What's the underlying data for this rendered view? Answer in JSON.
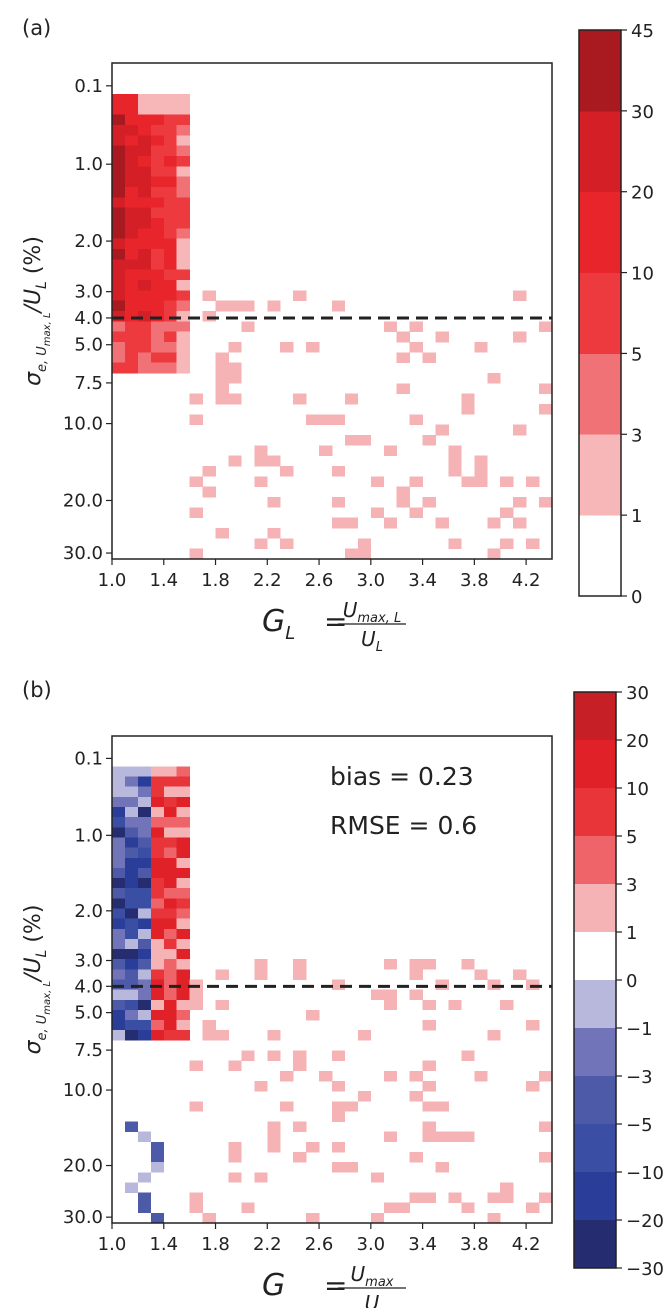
{
  "chart_data": [
    {
      "panel_label": "(a)",
      "type": "heatmap",
      "xlabel": {
        "main": "G",
        "sub": "L",
        "num": "U",
        "num_sub": "max, L",
        "den": "U",
        "den_sub": "L"
      },
      "ylabel": "σ_{e,U_max,L}/U_L (%)",
      "ylabel_parts": {
        "sigma": "σ",
        "sub1": "e, U",
        "subsub": "max, L",
        "rest": "/U",
        "rest_sub": "L",
        "unit": " (%)"
      },
      "xlim": [
        1.0,
        4.4
      ],
      "ylim_pct_log": [
        0.07,
        31
      ],
      "x_ticks": [
        "1.0",
        "1.4",
        "1.8",
        "2.2",
        "2.6",
        "3.0",
        "3.4",
        "3.8",
        "4.2"
      ],
      "y_ticks": [
        "0.1",
        "1.0",
        "2.0",
        "3.0",
        "4.0",
        "5.0",
        "7.5",
        "10.0",
        "20.0",
        "30.0"
      ],
      "threshold_pct": 4.0,
      "colorbar": {
        "ticks": [
          "0",
          "1",
          "3",
          "5",
          "10",
          "20",
          "30",
          "45"
        ],
        "colors": [
          "#ffffff",
          "#f7b6b8",
          "#f07276",
          "#ec3a3e",
          "#e8252b",
          "#d41f26",
          "#a81a20"
        ]
      },
      "cells": [
        [
          0.1,
          1.02,
          1
        ],
        [
          0.1,
          1.06,
          2
        ],
        [
          0.1,
          1.1,
          2
        ],
        [
          0.1,
          1.14,
          2
        ],
        [
          0.1,
          1.18,
          2
        ],
        [
          0.1,
          1.22,
          2
        ],
        [
          0.1,
          1.26,
          2
        ],
        [
          0.1,
          1.3,
          2
        ],
        [
          0.1,
          1.34,
          1
        ],
        [
          0.1,
          1.38,
          1
        ],
        [
          0.1,
          1.42,
          1
        ],
        [
          0.1,
          1.46,
          1
        ],
        [
          0.1,
          1.5,
          1
        ],
        [
          0.1,
          1.54,
          1
        ],
        [
          0.1,
          1.58,
          1
        ],
        [
          0.1,
          1.62,
          1
        ],
        [
          0.1,
          1.66,
          1
        ],
        [
          0.1,
          1.7,
          1
        ],
        [
          0.1,
          1.74,
          1
        ],
        [
          0.1,
          1.78,
          1
        ],
        [
          0.1,
          1.82,
          1
        ],
        [
          0.1,
          1.86,
          1
        ],
        [
          0.1,
          1.9,
          1
        ],
        [
          0.1,
          1.94,
          1
        ],
        [
          0.1,
          1.98,
          1
        ],
        [
          0.1,
          2.02,
          1
        ],
        [
          0.1,
          2.06,
          1
        ],
        [
          0.1,
          2.1,
          1
        ],
        [
          0.1,
          2.14,
          1
        ],
        [
          0.1,
          2.18,
          1
        ],
        [
          0.1,
          2.22,
          1
        ],
        [
          0.26,
          1.02,
          6
        ],
        [
          0.26,
          1.06,
          4
        ],
        [
          0.26,
          1.1,
          4
        ],
        [
          0.26,
          1.14,
          3
        ],
        [
          0.26,
          1.18,
          2
        ],
        [
          0.26,
          1.22,
          2
        ],
        [
          0.26,
          1.26,
          2
        ],
        [
          0.26,
          1.3,
          1
        ],
        [
          0.26,
          1.34,
          1
        ],
        [
          0.26,
          1.38,
          1
        ],
        [
          0.26,
          1.42,
          1
        ],
        [
          0.26,
          1.46,
          1
        ],
        [
          0.26,
          1.5,
          1
        ],
        [
          0.26,
          1.54,
          1
        ],
        [
          0.26,
          1.58,
          1
        ],
        [
          0.26,
          1.62,
          1
        ],
        [
          0.26,
          1.66,
          1
        ],
        [
          0.26,
          1.7,
          1
        ],
        [
          0.26,
          1.74,
          1
        ],
        [
          0.26,
          1.78,
          1
        ],
        [
          0.26,
          1.82,
          1
        ],
        [
          0.26,
          1.86,
          1
        ],
        [
          0.26,
          1.9,
          1
        ],
        [
          0.26,
          1.94,
          1
        ],
        [
          0.26,
          1.98,
          1
        ],
        [
          0.26,
          2.02,
          1
        ],
        [
          0.26,
          2.06,
          1
        ],
        [
          0.26,
          2.1,
          1
        ],
        [
          0.26,
          2.14,
          1
        ],
        [
          0.26,
          2.18,
          1
        ],
        [
          0.26,
          2.22,
          1
        ],
        [
          0.42,
          1.02,
          5
        ],
        [
          0.42,
          1.06,
          5
        ],
        [
          0.42,
          1.1,
          6
        ],
        [
          0.42,
          1.14,
          5
        ],
        [
          0.42,
          1.18,
          4
        ],
        [
          0.42,
          1.22,
          4
        ],
        [
          0.42,
          1.26,
          4
        ],
        [
          0.42,
          1.3,
          3
        ],
        [
          0.42,
          1.34,
          3
        ],
        [
          0.42,
          1.38,
          1
        ],
        [
          0.42,
          1.42,
          1
        ],
        [
          0.42,
          1.46,
          1
        ],
        [
          0.42,
          1.5,
          1
        ],
        [
          0.42,
          1.54,
          1
        ],
        [
          0.42,
          1.58,
          1
        ],
        [
          0.42,
          1.62,
          1
        ],
        [
          0.42,
          1.66,
          1
        ],
        [
          0.42,
          1.7,
          1
        ],
        [
          0.42,
          1.74,
          1
        ],
        [
          0.42,
          1.78,
          1
        ],
        [
          0.42,
          1.82,
          1
        ],
        [
          0.42,
          1.86,
          1
        ],
        [
          0.42,
          1.9,
          1
        ],
        [
          0.42,
          1.94,
          1
        ],
        [
          0.42,
          1.98,
          1
        ],
        [
          0.42,
          2.02,
          1
        ],
        [
          0.42,
          2.06,
          1
        ],
        [
          0.42,
          2.1,
          1
        ],
        [
          0.42,
          2.14,
          1
        ],
        [
          0.42,
          2.18,
          1
        ],
        [
          0.42,
          2.22,
          1
        ],
        [
          0.58,
          1.02,
          1
        ],
        [
          0.58,
          1.06,
          6
        ],
        [
          0.58,
          1.1,
          5
        ],
        [
          0.58,
          1.14,
          5
        ],
        [
          0.58,
          1.18,
          5
        ],
        [
          0.58,
          1.22,
          4
        ],
        [
          0.58,
          1.26,
          4
        ],
        [
          0.58,
          1.3,
          3
        ],
        [
          0.58,
          1.34,
          3
        ],
        [
          0.58,
          1.38,
          3
        ],
        [
          0.58,
          1.42,
          1
        ],
        [
          0.58,
          1.46,
          1
        ],
        [
          0.58,
          1.5,
          1
        ],
        [
          0.58,
          1.54,
          1
        ],
        [
          0.58,
          1.58,
          1
        ],
        [
          0.58,
          1.62,
          1
        ],
        [
          0.58,
          1.66,
          1
        ],
        [
          0.58,
          1.7,
          1
        ],
        [
          0.58,
          1.74,
          1
        ],
        [
          0.58,
          1.78,
          1
        ],
        [
          0.58,
          1.82,
          1
        ],
        [
          0.58,
          1.86,
          1
        ],
        [
          0.58,
          1.9,
          1
        ],
        [
          0.58,
          1.94,
          1
        ],
        [
          0.58,
          1.98,
          1
        ],
        [
          0.58,
          2.02,
          1
        ],
        [
          0.58,
          2.06,
          1
        ],
        [
          0.58,
          2.1,
          1
        ],
        [
          0.58,
          2.14,
          1
        ],
        [
          0.58,
          2.18,
          1
        ],
        [
          0.58,
          2.22,
          1
        ]
      ]
    },
    {
      "panel_label": "(b)",
      "type": "heatmap",
      "xlabel": {
        "main": "G",
        "num": "U",
        "num_sub": "max",
        "den": "U"
      },
      "ylabel": "σ_{e,U_max,L}/U_L (%)",
      "ylabel_parts": {
        "sigma": "σ",
        "sub1": "e, U",
        "subsub": "max, L",
        "rest": "/U",
        "rest_sub": "L",
        "unit": " (%)"
      },
      "xlim": [
        1.0,
        4.4
      ],
      "ylim_pct_log": [
        0.07,
        31
      ],
      "x_ticks": [
        "1.0",
        "1.4",
        "1.8",
        "2.2",
        "2.6",
        "3.0",
        "3.4",
        "3.8",
        "4.2"
      ],
      "y_ticks": [
        "0.1",
        "1.0",
        "2.0",
        "3.0",
        "4.0",
        "5.0",
        "7.5",
        "10.0",
        "20.0",
        "30.0"
      ],
      "threshold_pct": 4.0,
      "annotations": [
        "bias = 0.23",
        "RMSE = 0.6"
      ],
      "colorbar": {
        "ticks": [
          "30",
          "20",
          "10",
          "5",
          "3",
          "1",
          "0",
          "−1",
          "−3",
          "−5",
          "−10",
          "−20",
          "−30"
        ],
        "colors": [
          "#c62026",
          "#e02128",
          "#e8353a",
          "#ee6468",
          "#f6b3b5",
          "#ffffff",
          "#b8b8dc",
          "#7174b9",
          "#4d5aa8",
          "#3a4fa3",
          "#2a3d98",
          "#252c6f"
        ]
      }
    }
  ]
}
